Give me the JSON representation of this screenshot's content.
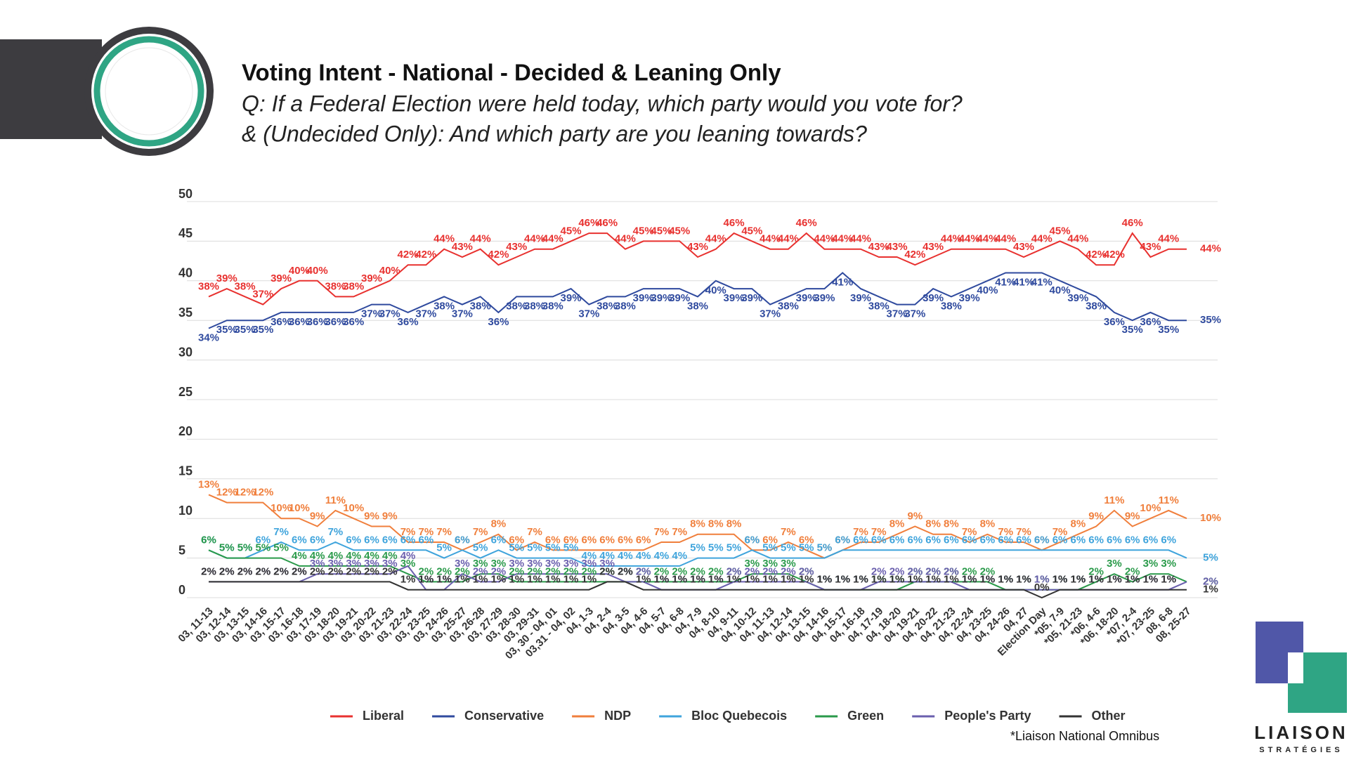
{
  "chart_data": {
    "type": "line",
    "title": "Voting Intent - National - Decided & Leaning Only",
    "subtitle": [
      "Q: If a Federal Election were held today, which party would you vote for?",
      "& (Undecided Only): And which party are you leaning towards?"
    ],
    "note": "*Liaison National Omnibus",
    "categories": [
      "03, 11-13",
      "03, 12-14",
      "03, 13-15",
      "03, 14-16",
      "03, 15-17",
      "03, 16-18",
      "03, 17-19",
      "03, 18-20",
      "03, 19-21",
      "03, 20-22",
      "03, 21-23",
      "03, 22-24",
      "03, 23-25",
      "03, 24-26",
      "03, 25-27",
      "03, 26-28",
      "03, 27-29",
      "03, 28-30",
      "03, 29-31",
      "03, 30 - 04, 01",
      "03,31 - 04, 02",
      "04, 1-3",
      "04, 2-4",
      "04, 3-5",
      "04, 4-6",
      "04, 5-7",
      "04, 6-8",
      "04, 7-9",
      "04, 8-10",
      "04, 9-11",
      "04, 10-12",
      "04, 11-13",
      "04, 12-14",
      "04, 13-15",
      "04, 14-16",
      "04, 15-17",
      "04, 16-18",
      "04, 17-19",
      "04, 18-20",
      "04, 19-21",
      "04, 20-22",
      "04, 21-23",
      "04, 22-24",
      "04, 23-25",
      "04, 24-26",
      "04, 27",
      "Election Day",
      "*05, 7-9",
      "*05, 21-23",
      "*06, 4-6",
      "*06, 18-20",
      "*07, 2-4",
      "*07, 23-25",
      "08, 6-8",
      "08, 25-27"
    ],
    "series": [
      {
        "name": "Liberal",
        "color": "#e8312f",
        "values": [
          38,
          39,
          38,
          37,
          39,
          40,
          40,
          38,
          38,
          39,
          40,
          42,
          42,
          44,
          43,
          44,
          42,
          43,
          44,
          44,
          45,
          46,
          46,
          44,
          45,
          45,
          45,
          43,
          44,
          46,
          45,
          44,
          44,
          46,
          44,
          44,
          44,
          43,
          43,
          42,
          43,
          44,
          44,
          44,
          44,
          43,
          44,
          45,
          44,
          42,
          42,
          46,
          43,
          44,
          44
        ],
        "value_labels": [
          "38%",
          "39%",
          "38%",
          "37%",
          "39%",
          "40%",
          "40%",
          "38%",
          "38%",
          "39%",
          "40%",
          "42%",
          "42%",
          "44%",
          "43%",
          "44%",
          "42%",
          "43%",
          "44%",
          "44%",
          "45%",
          "46%",
          "46%",
          "44%",
          "45%",
          "45%",
          "45%",
          "43%",
          "44%",
          "46%",
          "45%",
          "44%",
          "44%",
          "46%",
          "44%",
          "44%",
          "44%",
          "43%",
          "43%",
          "42%",
          "43%",
          "44%",
          "44%",
          "44%",
          "44%",
          "43%",
          "44%",
          "45%",
          "44%",
          "42%",
          "42%",
          "46%",
          "43%",
          "44%",
          "44%"
        ]
      },
      {
        "name": "Conservative",
        "color": "#2f4a9e",
        "values": [
          34,
          35,
          35,
          35,
          36,
          36,
          36,
          36,
          36,
          37,
          37,
          36,
          37,
          38,
          37,
          38,
          36,
          38,
          38,
          38,
          39,
          37,
          38,
          38,
          39,
          39,
          39,
          38,
          40,
          39,
          39,
          37,
          38,
          39,
          39,
          41,
          39,
          38,
          37,
          37,
          39,
          38,
          39,
          40,
          41,
          41,
          41,
          40,
          39,
          38,
          36,
          35,
          36,
          35,
          35
        ],
        "value_labels": [
          "34%",
          "35%",
          "35%",
          "35%",
          "36%",
          "36%",
          "36%",
          "36%",
          "36%",
          "37%",
          "37%",
          "36%",
          "37%",
          "38%",
          "37%",
          "38%",
          "36%",
          "38%",
          "38%",
          "38%",
          "39%",
          "37%",
          "38%",
          "38%",
          "39%",
          "39%",
          "39%",
          "38%",
          "40%",
          "39%",
          "39%",
          "37%",
          "38%",
          "39%",
          "39%",
          "41%",
          "39%",
          "38%",
          "37%",
          "37%",
          "39%",
          "38%",
          "39%",
          "40%",
          "41%",
          "41%",
          "41%",
          "40%",
          "39%",
          "38%",
          "36%",
          "35%",
          "36%",
          "35%",
          "35%"
        ]
      },
      {
        "name": "NDP",
        "color": "#f07f3c",
        "values": [
          13,
          12,
          12,
          12,
          10,
          10,
          9,
          11,
          10,
          9,
          9,
          7,
          7,
          7,
          6,
          7,
          8,
          6,
          7,
          6,
          6,
          6,
          6,
          6,
          6,
          7,
          7,
          8,
          8,
          8,
          6,
          6,
          7,
          6,
          5,
          6,
          7,
          7,
          8,
          9,
          8,
          8,
          7,
          8,
          7,
          7,
          6,
          7,
          8,
          9,
          11,
          9,
          10,
          11,
          10
        ],
        "value_labels": [
          "13%",
          "12%",
          "12%",
          "12%",
          "10%",
          "10%",
          "9%",
          "11%",
          "10%",
          "9%",
          "9%",
          "7%",
          "7%",
          "7%",
          "6%",
          "7%",
          "8%",
          "6%",
          "7%",
          "6%",
          "6%",
          "6%",
          "6%",
          "6%",
          "6%",
          "7%",
          "7%",
          "8%",
          "8%",
          "8%",
          "6%",
          "6%",
          "7%",
          "6%",
          "5%",
          "6%",
          "7%",
          "7%",
          "8%",
          "9%",
          "8%",
          "8%",
          "7%",
          "8%",
          "7%",
          "7%",
          "6%",
          "7%",
          "8%",
          "9%",
          "11%",
          "9%",
          "10%",
          "11%",
          "10%"
        ]
      },
      {
        "name": "Bloc Quebecois",
        "color": "#3fa4dc",
        "values": [
          6,
          5,
          5,
          6,
          7,
          6,
          6,
          7,
          6,
          6,
          6,
          6,
          6,
          5,
          6,
          5,
          6,
          5,
          5,
          5,
          5,
          4,
          4,
          4,
          4,
          4,
          4,
          5,
          5,
          5,
          6,
          5,
          5,
          5,
          5,
          6,
          6,
          6,
          6,
          6,
          6,
          6,
          6,
          6,
          6,
          6,
          6,
          6,
          6,
          6,
          6,
          6,
          6,
          6,
          5
        ],
        "value_labels": [
          "6%",
          "5%",
          "5%",
          "6%",
          "7%",
          "6%",
          "6%",
          "7%",
          "6%",
          "6%",
          "6%",
          "6%",
          "6%",
          "5%",
          "6%",
          "5%",
          "6%",
          "5%",
          "5%",
          "5%",
          "5%",
          "4%",
          "4%",
          "4%",
          "4%",
          "4%",
          "4%",
          "5%",
          "5%",
          "5%",
          "6%",
          "5%",
          "5%",
          "5%",
          "5%",
          "6%",
          "6%",
          "6%",
          "6%",
          "6%",
          "6%",
          "6%",
          "6%",
          "6%",
          "6%",
          "6%",
          "6%",
          "6%",
          "6%",
          "6%",
          "6%",
          "6%",
          "6%",
          "6%",
          "5%"
        ]
      },
      {
        "name": "Green",
        "color": "#2a9a4a",
        "values": [
          6,
          5,
          5,
          5,
          5,
          4,
          4,
          4,
          4,
          4,
          4,
          3,
          2,
          2,
          2,
          3,
          3,
          2,
          2,
          2,
          2,
          2,
          2,
          2,
          2,
          2,
          2,
          2,
          2,
          2,
          3,
          3,
          3,
          2,
          1,
          1,
          1,
          1,
          1,
          2,
          2,
          2,
          2,
          2,
          1,
          1,
          1,
          1,
          1,
          2,
          3,
          2,
          3,
          3,
          2
        ],
        "value_labels": [
          "6%",
          "5%",
          "5%",
          "5%",
          "5%",
          "4%",
          "4%",
          "4%",
          "4%",
          "4%",
          "4%",
          "3%",
          "2%",
          "2%",
          "2%",
          "3%",
          "3%",
          "2%",
          "2%",
          "2%",
          "2%",
          "2%",
          "2%",
          "2%",
          "2%",
          "2%",
          "2%",
          "2%",
          "2%",
          "2%",
          "3%",
          "3%",
          "3%",
          "2%",
          "1%",
          "1%",
          "1%",
          "1%",
          "1%",
          "2%",
          "2%",
          "2%",
          "2%",
          "2%",
          "1%",
          "1%",
          "1%",
          "1%",
          "1%",
          "2%",
          "3%",
          "2%",
          "3%",
          "3%",
          "2%"
        ]
      },
      {
        "name": "People's Party",
        "color": "#6a5fae",
        "values": [
          2,
          2,
          2,
          2,
          2,
          2,
          3,
          3,
          3,
          3,
          3,
          4,
          1,
          1,
          3,
          2,
          2,
          3,
          3,
          3,
          3,
          3,
          3,
          2,
          2,
          1,
          1,
          1,
          1,
          2,
          2,
          2,
          2,
          2,
          1,
          1,
          1,
          2,
          2,
          2,
          2,
          2,
          1,
          1,
          1,
          1,
          1,
          1,
          1,
          1,
          1,
          1,
          1,
          1,
          2
        ],
        "value_labels": [
          "2%",
          "2%",
          "2%",
          "2%",
          "2%",
          "2%",
          "3%",
          "3%",
          "3%",
          "3%",
          "3%",
          "4%",
          "1%",
          "1%",
          "3%",
          "2%",
          "2%",
          "3%",
          "3%",
          "3%",
          "3%",
          "3%",
          "3%",
          "2%",
          "2%",
          "1%",
          "1%",
          "1%",
          "1%",
          "2%",
          "2%",
          "2%",
          "2%",
          "2%",
          "1%",
          "1%",
          "1%",
          "2%",
          "2%",
          "2%",
          "2%",
          "2%",
          "1%",
          "1%",
          "1%",
          "1%",
          "1%",
          "1%",
          "1%",
          "1%",
          "1%",
          "1%",
          "1%",
          "1%",
          "2%"
        ]
      },
      {
        "name": "Other",
        "color": "#333333",
        "values": [
          2,
          2,
          2,
          2,
          2,
          2,
          2,
          2,
          2,
          2,
          2,
          1,
          1,
          1,
          1,
          1,
          1,
          1,
          1,
          1,
          1,
          1,
          2,
          2,
          1,
          1,
          1,
          1,
          1,
          1,
          1,
          1,
          1,
          1,
          1,
          1,
          1,
          1,
          1,
          1,
          1,
          1,
          1,
          1,
          1,
          1,
          0,
          1,
          1,
          1,
          1,
          1,
          1,
          1,
          1
        ],
        "value_labels": [
          "2%",
          "2%",
          "2%",
          "2%",
          "2%",
          "2%",
          "2%",
          "2%",
          "2%",
          "2%",
          "2%",
          "1%",
          "1%",
          "1%",
          "1%",
          "1%",
          "1%",
          "1%",
          "1%",
          "1%",
          "1%",
          "1%",
          "2%",
          "2%",
          "1%",
          "1%",
          "1%",
          "1%",
          "1%",
          "1%",
          "1%",
          "1%",
          "1%",
          "1%",
          "1%",
          "1%",
          "1%",
          "1%",
          "1%",
          "1%",
          "1%",
          "1%",
          "1%",
          "1%",
          "1%",
          "1%",
          "0%",
          "1%",
          "1%",
          "1%",
          "1%",
          "1%",
          "1%",
          "1%",
          "1%"
        ]
      }
    ],
    "ylim": [
      0,
      50
    ],
    "yticks": [
      0,
      5,
      10,
      15,
      20,
      25,
      30,
      35,
      40,
      45,
      50
    ],
    "grid": true
  },
  "logo": {
    "name": "LIAISON",
    "tagline": "STRATÉGIES"
  }
}
